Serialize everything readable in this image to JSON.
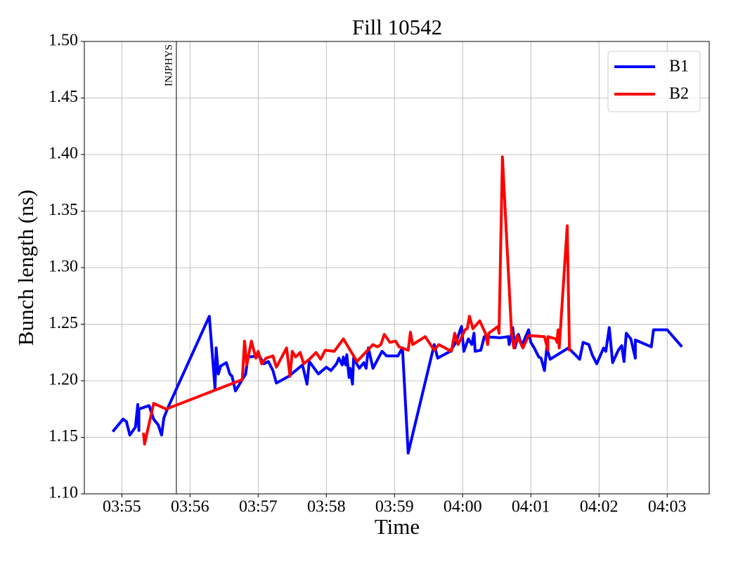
{
  "chart_data": {
    "type": "line",
    "title": "Fill 10542",
    "xlabel": "Time",
    "ylabel": "Bunch length (ns)",
    "xlim": [
      "03:54:27",
      "04:03:37"
    ],
    "xticks": [
      "03:55",
      "03:56",
      "03:57",
      "03:58",
      "03:59",
      "04:00",
      "04:01",
      "04:02",
      "04:03"
    ],
    "ylim": [
      1.1,
      1.5
    ],
    "yticks": [
      {
        "value": 1.1,
        "label": "1.10"
      },
      {
        "value": 1.15,
        "label": "1.15"
      },
      {
        "value": 1.2,
        "label": "1.20"
      },
      {
        "value": 1.25,
        "label": "1.25"
      },
      {
        "value": 1.3,
        "label": "1.30"
      },
      {
        "value": 1.35,
        "label": "1.35"
      },
      {
        "value": 1.4,
        "label": "1.40"
      },
      {
        "value": 1.45,
        "label": "1.45"
      },
      {
        "value": 1.5,
        "label": "1.50"
      }
    ],
    "grid": true,
    "legend": "upper right",
    "annotations": [
      {
        "text": "INJPHYS",
        "x": "03:55:48"
      }
    ],
    "series": [
      {
        "name": "B1",
        "color": "#0000ff",
        "x": [
          "03:54:52",
          "03:55:01",
          "03:55:04",
          "03:55:07",
          "03:55:12",
          "03:55:14",
          "03:55:15",
          "03:55:15",
          "03:55:24",
          "03:55:28",
          "03:55:32",
          "03:55:35",
          "03:55:37",
          "03:55:40",
          "03:56:17",
          "03:56:22",
          "03:56:23",
          "03:56:25",
          "03:56:27",
          "03:56:32",
          "03:56:35",
          "03:56:37",
          "03:56:40",
          "03:56:46",
          "03:56:49",
          "03:56:51",
          "03:57:01",
          "03:57:05",
          "03:57:09",
          "03:57:13",
          "03:57:16",
          "03:57:27",
          "03:57:39",
          "03:57:43",
          "03:57:45",
          "03:57:53",
          "03:58:00",
          "03:58:04",
          "03:58:09",
          "03:58:11",
          "03:58:14",
          "03:58:15",
          "03:58:17",
          "03:58:18",
          "03:58:20",
          "03:58:21",
          "03:58:23",
          "03:58:24",
          "03:58:29",
          "03:58:33",
          "03:58:35",
          "03:58:37",
          "03:58:41",
          "03:58:49",
          "03:58:53",
          "03:59:03",
          "03:59:07",
          "03:59:12",
          "03:59:35",
          "03:59:38",
          "03:59:49",
          "03:59:54",
          "03:59:59",
          "04:00:01",
          "04:00:05",
          "04:00:08",
          "04:00:10",
          "04:00:11",
          "04:00:16",
          "04:00:19",
          "04:00:33",
          "04:00:40",
          "04:00:41",
          "04:00:44",
          "04:00:46",
          "04:00:49",
          "04:00:52",
          "04:00:58",
          "04:01:00",
          "04:01:03",
          "04:01:07",
          "04:01:09",
          "04:01:12",
          "04:01:14",
          "04:01:17",
          "04:01:33",
          "04:01:43",
          "04:01:46",
          "04:01:51",
          "04:01:54",
          "04:01:58",
          "04:02:04",
          "04:02:06",
          "04:02:09",
          "04:02:12",
          "04:02:17",
          "04:02:20",
          "04:02:22",
          "04:02:24",
          "04:02:28",
          "04:02:32",
          "04:02:32",
          "04:02:46",
          "04:02:48",
          "04:03:00",
          "04:03:13"
        ],
        "values": [
          1.155,
          1.166,
          1.164,
          1.152,
          1.159,
          1.179,
          1.156,
          1.175,
          1.178,
          1.166,
          1.161,
          1.152,
          1.167,
          1.175,
          1.257,
          1.193,
          1.229,
          1.206,
          1.213,
          1.216,
          1.206,
          1.204,
          1.191,
          1.201,
          1.206,
          1.221,
          1.222,
          1.215,
          1.217,
          1.209,
          1.198,
          1.204,
          1.214,
          1.197,
          1.217,
          1.206,
          1.212,
          1.209,
          1.215,
          1.22,
          1.214,
          1.221,
          1.214,
          1.223,
          1.203,
          1.211,
          1.197,
          1.22,
          1.211,
          1.216,
          1.211,
          1.229,
          1.211,
          1.226,
          1.222,
          1.222,
          1.229,
          1.136,
          1.232,
          1.22,
          1.226,
          1.234,
          1.248,
          1.226,
          1.237,
          1.232,
          1.242,
          1.226,
          1.227,
          1.239,
          1.238,
          1.239,
          1.232,
          1.247,
          1.229,
          1.241,
          1.231,
          1.245,
          1.234,
          1.229,
          1.221,
          1.22,
          1.209,
          1.229,
          1.219,
          1.229,
          1.219,
          1.234,
          1.232,
          1.223,
          1.215,
          1.229,
          1.226,
          1.247,
          1.216,
          1.227,
          1.231,
          1.217,
          1.242,
          1.237,
          1.22,
          1.236,
          1.23,
          1.245,
          1.245,
          1.23
        ]
      },
      {
        "name": "B2",
        "color": "#ff0000",
        "x": [
          "03:55:19",
          "03:55:20",
          "03:55:28",
          "03:55:39",
          "03:56:46",
          "03:56:48",
          "03:56:50",
          "03:56:54",
          "03:56:58",
          "03:57:00",
          "03:57:03",
          "03:57:07",
          "03:57:13",
          "03:57:16",
          "03:57:25",
          "03:57:28",
          "03:57:30",
          "03:57:33",
          "03:57:37",
          "03:57:40",
          "03:57:45",
          "03:57:51",
          "03:57:55",
          "03:57:59",
          "03:58:07",
          "03:58:15",
          "03:58:27",
          "03:58:41",
          "03:58:45",
          "03:58:48",
          "03:58:51",
          "03:58:56",
          "03:59:01",
          "03:59:04",
          "03:59:12",
          "03:59:14",
          "03:59:16",
          "03:59:27",
          "03:59:35",
          "03:59:39",
          "03:59:50",
          "03:59:53",
          "03:59:56",
          "04:00:02",
          "04:00:04",
          "04:00:06",
          "04:00:09",
          "04:00:15",
          "04:00:20",
          "04:00:22",
          "04:00:23",
          "04:00:31",
          "04:00:32",
          "04:00:35",
          "04:00:43",
          "04:00:45",
          "04:00:48",
          "04:00:53",
          "04:00:58",
          "04:01:12",
          "04:01:15",
          "04:01:15",
          "04:01:22",
          "04:01:23",
          "04:01:24",
          "04:01:25",
          "04:01:32",
          "04:01:34"
        ],
        "values": [
          1.154,
          1.144,
          1.18,
          1.175,
          1.201,
          1.235,
          1.214,
          1.235,
          1.22,
          1.226,
          1.215,
          1.22,
          1.222,
          1.212,
          1.229,
          1.204,
          1.226,
          1.221,
          1.225,
          1.215,
          1.219,
          1.225,
          1.219,
          1.227,
          1.226,
          1.237,
          1.217,
          1.232,
          1.23,
          1.232,
          1.241,
          1.234,
          1.235,
          1.23,
          1.227,
          1.243,
          1.232,
          1.239,
          1.227,
          1.232,
          1.226,
          1.242,
          1.232,
          1.245,
          1.246,
          1.257,
          1.246,
          1.253,
          1.242,
          1.232,
          1.242,
          1.248,
          1.242,
          1.398,
          1.242,
          1.229,
          1.24,
          1.229,
          1.24,
          1.239,
          1.227,
          1.239,
          1.237,
          1.234,
          1.245,
          1.229,
          1.337,
          1.226
        ]
      }
    ]
  }
}
